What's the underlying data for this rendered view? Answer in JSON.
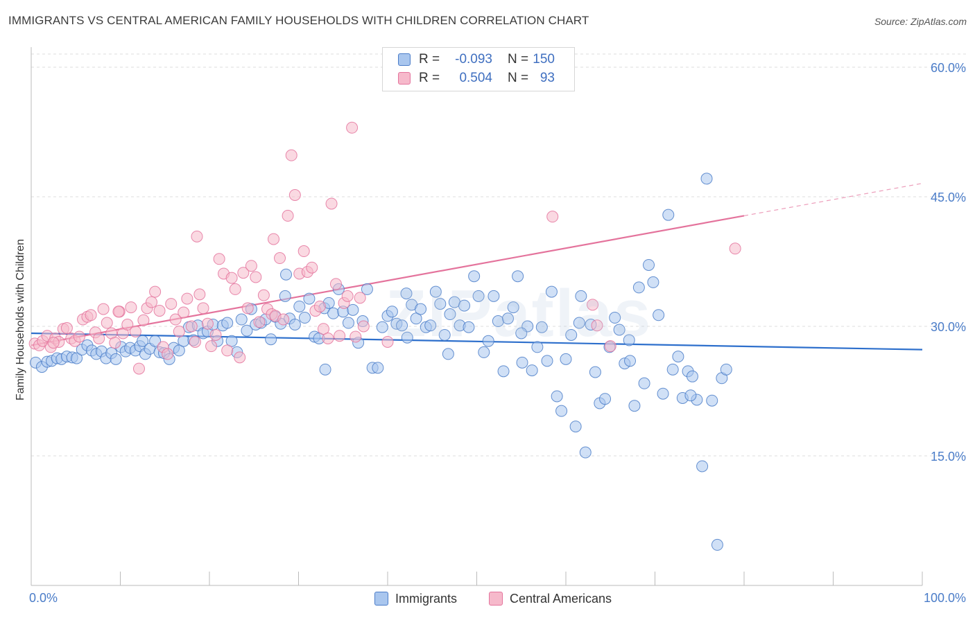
{
  "title": "IMMIGRANTS VS CENTRAL AMERICAN FAMILY HOUSEHOLDS WITH CHILDREN CORRELATION CHART",
  "source": "Source: ZipAtlas.com",
  "watermark": "ZIPatlas",
  "legend": {
    "rows": [
      {
        "r_label": "R =",
        "r_value": "-0.093",
        "n_label": "N =",
        "n_value": "150",
        "color": "#a9c6ee"
      },
      {
        "r_label": "R =",
        "r_value": "0.504",
        "n_label": "N =",
        "n_value": "93",
        "color": "#f6b9cb"
      }
    ]
  },
  "bottom_legend": [
    {
      "label": "Immigrants",
      "color": "#a9c6ee"
    },
    {
      "label": "Central Americans",
      "color": "#f6b9cb"
    }
  ],
  "chart_data": {
    "type": "scatter",
    "title": "IMMIGRANTS VS CENTRAL AMERICAN FAMILY HOUSEHOLDS WITH CHILDREN CORRELATION CHART",
    "xlabel": "",
    "ylabel": "Family Households with Children",
    "xlim": [
      0,
      100
    ],
    "ylim": [
      0,
      63
    ],
    "x_tick_labels": [
      "0.0%",
      "100.0%"
    ],
    "y_ticks": [
      15,
      30,
      45,
      60
    ],
    "y_tick_labels": [
      "15.0%",
      "30.0%",
      "45.0%",
      "60.0%"
    ],
    "grid": true,
    "legend_position": "top-center",
    "series": [
      {
        "name": "Immigrants",
        "color": "#4a7cc8",
        "fill": "#a9c6ee",
        "trend": {
          "x": [
            0,
            100
          ],
          "y": [
            29.2,
            27.3
          ]
        },
        "points": [
          [
            0.5,
            25.8
          ],
          [
            1.2,
            25.3
          ],
          [
            1.8,
            25.9
          ],
          [
            2.3,
            26.0
          ],
          [
            2.9,
            26.3
          ],
          [
            3.4,
            26.2
          ],
          [
            4.0,
            26.5
          ],
          [
            4.6,
            26.4
          ],
          [
            5.1,
            26.3
          ],
          [
            5.7,
            27.3
          ],
          [
            6.3,
            27.8
          ],
          [
            6.8,
            27.2
          ],
          [
            7.3,
            26.8
          ],
          [
            7.9,
            27.1
          ],
          [
            8.4,
            26.3
          ],
          [
            9.0,
            26.9
          ],
          [
            9.5,
            26.2
          ],
          [
            10.1,
            27.6
          ],
          [
            10.6,
            27.1
          ],
          [
            11.1,
            27.5
          ],
          [
            11.7,
            27.2
          ],
          [
            12.2,
            27.7
          ],
          [
            12.8,
            26.8
          ],
          [
            13.3,
            27.4
          ],
          [
            13.9,
            28.3
          ],
          [
            14.4,
            27.0
          ],
          [
            14.9,
            26.9
          ],
          [
            15.5,
            26.2
          ],
          [
            16.0,
            27.5
          ],
          [
            16.6,
            27.2
          ],
          [
            17.1,
            28.3
          ],
          [
            17.7,
            29.9
          ],
          [
            18.2,
            28.4
          ],
          [
            18.7,
            30.1
          ],
          [
            19.3,
            29.2
          ],
          [
            19.8,
            29.4
          ],
          [
            20.4,
            30.2
          ],
          [
            20.9,
            28.3
          ],
          [
            21.5,
            30.1
          ],
          [
            22.0,
            30.4
          ],
          [
            22.5,
            28.3
          ],
          [
            23.1,
            27.0
          ],
          [
            23.6,
            30.8
          ],
          [
            24.2,
            29.5
          ],
          [
            24.7,
            32.0
          ],
          [
            25.2,
            30.2
          ],
          [
            25.8,
            30.4
          ],
          [
            26.3,
            30.8
          ],
          [
            26.9,
            28.5
          ],
          [
            27.4,
            31.1
          ],
          [
            28.0,
            30.3
          ],
          [
            28.5,
            33.5
          ],
          [
            29.0,
            30.9
          ],
          [
            29.6,
            30.2
          ],
          [
            30.1,
            32.3
          ],
          [
            30.7,
            31.0
          ],
          [
            31.2,
            33.2
          ],
          [
            31.8,
            28.8
          ],
          [
            32.3,
            28.6
          ],
          [
            32.9,
            32.1
          ],
          [
            33.4,
            32.7
          ],
          [
            33.9,
            31.5
          ],
          [
            34.5,
            34.3
          ],
          [
            35.0,
            31.7
          ],
          [
            35.6,
            30.4
          ],
          [
            36.1,
            31.9
          ],
          [
            36.7,
            28.1
          ],
          [
            37.2,
            30.6
          ],
          [
            37.7,
            34.3
          ],
          [
            38.3,
            25.2
          ],
          [
            38.9,
            25.2
          ],
          [
            39.4,
            29.9
          ],
          [
            40.0,
            31.2
          ],
          [
            40.5,
            31.7
          ],
          [
            41.0,
            30.3
          ],
          [
            41.6,
            30.1
          ],
          [
            42.1,
            33.8
          ],
          [
            42.7,
            32.5
          ],
          [
            43.2,
            30.9
          ],
          [
            43.7,
            32.0
          ],
          [
            44.3,
            29.9
          ],
          [
            44.8,
            30.1
          ],
          [
            45.4,
            34.0
          ],
          [
            45.9,
            32.6
          ],
          [
            46.4,
            29.0
          ],
          [
            47.0,
            31.4
          ],
          [
            47.5,
            32.8
          ],
          [
            48.1,
            30.1
          ],
          [
            48.6,
            32.4
          ],
          [
            49.1,
            29.9
          ],
          [
            49.7,
            35.8
          ],
          [
            50.2,
            33.5
          ],
          [
            50.8,
            27.0
          ],
          [
            51.3,
            28.3
          ],
          [
            51.9,
            33.5
          ],
          [
            52.4,
            30.6
          ],
          [
            53.0,
            24.8
          ],
          [
            53.5,
            30.9
          ],
          [
            54.1,
            32.2
          ],
          [
            54.6,
            35.8
          ],
          [
            55.1,
            25.8
          ],
          [
            55.7,
            30.0
          ],
          [
            56.2,
            24.9
          ],
          [
            56.8,
            27.6
          ],
          [
            57.3,
            29.9
          ],
          [
            57.9,
            26.0
          ],
          [
            58.4,
            34.0
          ],
          [
            59.0,
            21.9
          ],
          [
            59.5,
            20.2
          ],
          [
            60.0,
            26.2
          ],
          [
            60.6,
            29.0
          ],
          [
            61.1,
            18.4
          ],
          [
            61.7,
            33.5
          ],
          [
            62.2,
            15.4
          ],
          [
            62.8,
            30.2
          ],
          [
            63.3,
            24.7
          ],
          [
            63.8,
            21.1
          ],
          [
            64.4,
            21.6
          ],
          [
            64.9,
            27.6
          ],
          [
            65.5,
            31.0
          ],
          [
            66.0,
            29.6
          ],
          [
            66.6,
            25.7
          ],
          [
            67.1,
            28.4
          ],
          [
            67.7,
            20.8
          ],
          [
            68.2,
            34.5
          ],
          [
            68.8,
            23.4
          ],
          [
            69.3,
            37.1
          ],
          [
            69.8,
            35.1
          ],
          [
            70.4,
            31.3
          ],
          [
            70.9,
            22.2
          ],
          [
            71.5,
            42.9
          ],
          [
            72.0,
            25.0
          ],
          [
            72.6,
            26.5
          ],
          [
            73.1,
            21.7
          ],
          [
            73.7,
            24.8
          ],
          [
            74.2,
            24.2
          ],
          [
            74.7,
            21.5
          ],
          [
            75.3,
            13.8
          ],
          [
            75.8,
            47.1
          ],
          [
            76.4,
            21.4
          ],
          [
            77.0,
            4.7
          ],
          [
            77.5,
            24.0
          ],
          [
            78.0,
            25.0
          ],
          [
            74.0,
            22.0
          ],
          [
            12.5,
            28.3
          ],
          [
            55.0,
            29.2
          ],
          [
            42.2,
            28.7
          ],
          [
            33.0,
            25.0
          ],
          [
            46.8,
            26.8
          ],
          [
            61.5,
            30.4
          ],
          [
            28.6,
            36.0
          ],
          [
            67.2,
            26.0
          ]
        ]
      },
      {
        "name": "Central Americans",
        "color": "#e4739c",
        "fill": "#f6b9cb",
        "trend": {
          "x": [
            0,
            80
          ],
          "y": [
            27.8,
            42.8
          ]
        },
        "points": [
          [
            0.4,
            28.0
          ],
          [
            0.9,
            27.8
          ],
          [
            1.3,
            28.3
          ],
          [
            1.8,
            28.9
          ],
          [
            2.2,
            27.6
          ],
          [
            2.7,
            28.6
          ],
          [
            3.1,
            28.2
          ],
          [
            3.6,
            29.7
          ],
          [
            4.0,
            29.8
          ],
          [
            4.5,
            28.6
          ],
          [
            4.9,
            28.3
          ],
          [
            5.4,
            28.8
          ],
          [
            5.8,
            30.8
          ],
          [
            6.3,
            31.1
          ],
          [
            6.7,
            31.3
          ],
          [
            7.2,
            29.3
          ],
          [
            7.6,
            28.6
          ],
          [
            8.1,
            32.0
          ],
          [
            8.5,
            30.4
          ],
          [
            9.0,
            29.2
          ],
          [
            9.4,
            28.1
          ],
          [
            9.9,
            31.7
          ],
          [
            10.3,
            29.2
          ],
          [
            10.8,
            30.2
          ],
          [
            11.2,
            32.2
          ],
          [
            11.7,
            29.4
          ],
          [
            12.1,
            25.1
          ],
          [
            12.6,
            30.7
          ],
          [
            13.0,
            32.1
          ],
          [
            13.5,
            32.8
          ],
          [
            13.9,
            34.0
          ],
          [
            14.4,
            31.8
          ],
          [
            14.8,
            27.6
          ],
          [
            15.3,
            26.8
          ],
          [
            15.7,
            32.6
          ],
          [
            16.2,
            30.8
          ],
          [
            16.6,
            29.4
          ],
          [
            17.1,
            31.6
          ],
          [
            17.5,
            33.2
          ],
          [
            18.0,
            30.0
          ],
          [
            18.4,
            28.2
          ],
          [
            18.9,
            33.7
          ],
          [
            19.3,
            32.1
          ],
          [
            19.8,
            30.3
          ],
          [
            20.2,
            27.7
          ],
          [
            20.7,
            29.0
          ],
          [
            21.1,
            37.8
          ],
          [
            21.6,
            36.1
          ],
          [
            22.0,
            27.2
          ],
          [
            22.5,
            35.6
          ],
          [
            22.9,
            34.3
          ],
          [
            23.4,
            26.4
          ],
          [
            23.8,
            36.2
          ],
          [
            24.3,
            32.1
          ],
          [
            24.7,
            37.0
          ],
          [
            25.2,
            35.7
          ],
          [
            25.6,
            30.5
          ],
          [
            26.1,
            33.6
          ],
          [
            26.5,
            32.0
          ],
          [
            27.0,
            31.4
          ],
          [
            27.4,
            31.2
          ],
          [
            27.9,
            37.9
          ],
          [
            28.3,
            30.8
          ],
          [
            28.8,
            42.8
          ],
          [
            29.2,
            49.8
          ],
          [
            29.6,
            45.2
          ],
          [
            30.1,
            36.1
          ],
          [
            30.6,
            38.7
          ],
          [
            31.0,
            36.3
          ],
          [
            31.5,
            36.8
          ],
          [
            31.9,
            31.8
          ],
          [
            32.4,
            32.3
          ],
          [
            32.8,
            29.7
          ],
          [
            33.3,
            28.6
          ],
          [
            33.7,
            44.2
          ],
          [
            34.2,
            34.9
          ],
          [
            34.6,
            28.9
          ],
          [
            35.1,
            32.7
          ],
          [
            35.5,
            33.5
          ],
          [
            36.0,
            53.0
          ],
          [
            36.4,
            28.8
          ],
          [
            36.9,
            33.3
          ],
          [
            37.3,
            30.0
          ],
          [
            58.5,
            42.7
          ],
          [
            63.5,
            30.1
          ],
          [
            65.0,
            27.7
          ],
          [
            63.0,
            32.5
          ],
          [
            79.0,
            39.0
          ],
          [
            40.0,
            28.2
          ],
          [
            9.8,
            31.7
          ],
          [
            2.5,
            28.1
          ],
          [
            18.6,
            40.4
          ],
          [
            27.2,
            40.1
          ]
        ]
      }
    ]
  }
}
